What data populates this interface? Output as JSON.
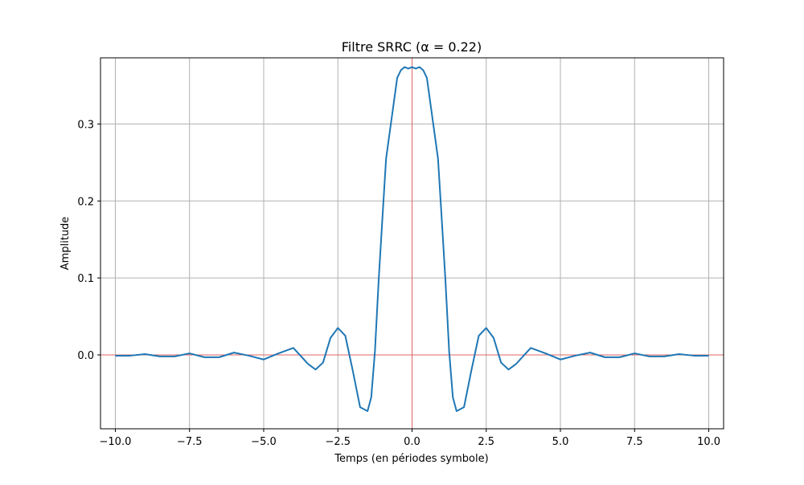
{
  "chart_data": {
    "type": "line",
    "title": "Filtre SRRC (α = 0.22)",
    "xlabel": "Temps (en périodes symbole)",
    "ylabel": "Amplitude",
    "xlim": [
      -10.5,
      10.5
    ],
    "ylim": [
      -0.096,
      0.386
    ],
    "xticks": [
      -10,
      -7.5,
      -5,
      -2.5,
      0,
      2.5,
      5,
      7.5,
      10
    ],
    "xtick_labels": [
      "−10.0",
      "−7.5",
      "−5.0",
      "−2.5",
      "0.0",
      "2.5",
      "5.0",
      "7.5",
      "10.0"
    ],
    "yticks": [
      0.0,
      0.1,
      0.2,
      0.3
    ],
    "ytick_labels": [
      "0.0",
      "0.1",
      "0.2",
      "0.3"
    ],
    "grid": true,
    "reference_lines": {
      "horizontal_y": 0,
      "vertical_x": 0,
      "color": "#e06666"
    },
    "series": [
      {
        "color": "#1f77b4",
        "x": [
          -10.0,
          -9.5,
          -9.0,
          -8.5,
          -8.0,
          -7.5,
          -7.0,
          -6.5,
          -6.0,
          -5.5,
          -5.0,
          -4.5,
          -4.0,
          -3.5,
          -3.25,
          -3.0,
          -2.75,
          -2.5,
          -2.25,
          -2.0,
          -1.75,
          -1.5,
          -1.375,
          -1.25,
          -1.125,
          -1.0,
          -0.875,
          -0.75,
          -0.625,
          -0.5,
          -0.375,
          -0.25,
          -0.125,
          0.0,
          0.125,
          0.25,
          0.375,
          0.5,
          0.625,
          0.75,
          0.875,
          1.0,
          1.125,
          1.25,
          1.375,
          1.5,
          1.75,
          2.0,
          2.25,
          2.5,
          2.75,
          3.0,
          3.25,
          3.5,
          4.0,
          4.5,
          5.0,
          5.5,
          6.0,
          6.5,
          7.0,
          7.5,
          8.0,
          8.5,
          9.0,
          9.5,
          10.0
        ],
        "y": [
          -0.001,
          -0.001,
          0.001,
          -0.002,
          -0.002,
          0.002,
          -0.003,
          -0.003,
          0.003,
          -0.001,
          -0.006,
          0.002,
          0.009,
          -0.012,
          -0.019,
          -0.01,
          0.022,
          0.035,
          0.025,
          -0.02,
          -0.068,
          -0.073,
          -0.055,
          0.005,
          0.097,
          0.177,
          0.255,
          0.29,
          0.325,
          0.36,
          0.37,
          0.374,
          0.372,
          0.374,
          0.372,
          0.374,
          0.37,
          0.36,
          0.325,
          0.29,
          0.255,
          0.177,
          0.097,
          0.005,
          -0.055,
          -0.073,
          -0.068,
          -0.02,
          0.025,
          0.035,
          0.022,
          -0.01,
          -0.019,
          -0.012,
          0.009,
          0.002,
          -0.006,
          -0.001,
          0.003,
          -0.003,
          -0.003,
          0.002,
          -0.002,
          -0.002,
          0.001,
          -0.001,
          -0.001
        ]
      }
    ]
  }
}
